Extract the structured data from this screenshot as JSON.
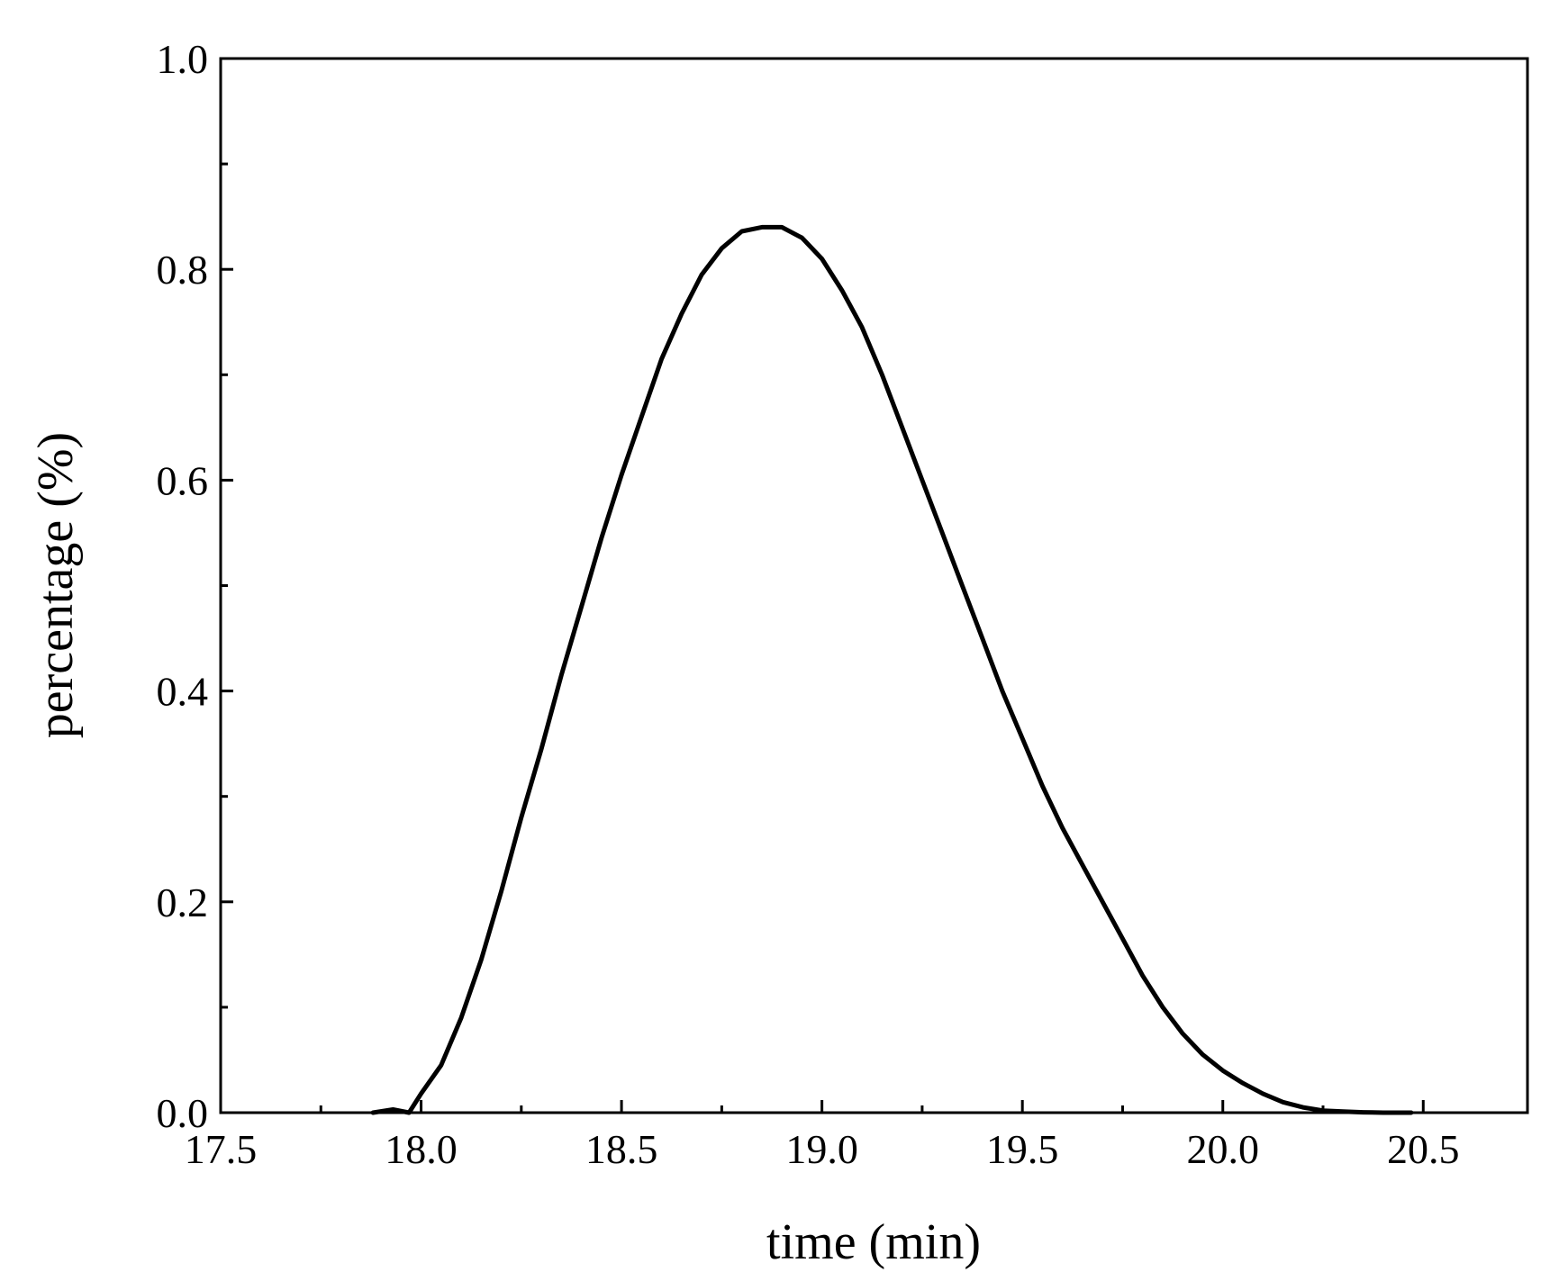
{
  "chart_data": {
    "type": "line",
    "title": "",
    "xlabel": "time (min)",
    "ylabel": "percentage (%)",
    "xlim": [
      17.5,
      20.76
    ],
    "ylim": [
      0.0,
      1.0
    ],
    "x_ticks": [
      17.5,
      18.0,
      18.5,
      19.0,
      19.5,
      20.0,
      20.5
    ],
    "x_tick_labels": [
      "17.5",
      "18.0",
      "18.5",
      "19.0",
      "19.5",
      "20.0",
      "20.5"
    ],
    "y_ticks": [
      0.0,
      0.2,
      0.4,
      0.6,
      0.8,
      1.0
    ],
    "y_tick_labels": [
      "0.0",
      "0.2",
      "0.4",
      "0.6",
      "0.8",
      "1.0"
    ],
    "grid": false,
    "line_color": "#000000",
    "series": [
      {
        "x": [
          17.88,
          17.93,
          17.97,
          18.0,
          18.05,
          18.1,
          18.15,
          18.2,
          18.25,
          18.3,
          18.35,
          18.4,
          18.45,
          18.5,
          18.55,
          18.6,
          18.65,
          18.7,
          18.75,
          18.8,
          18.85,
          18.9,
          18.95,
          19.0,
          19.05,
          19.1,
          19.15,
          19.2,
          19.25,
          19.3,
          19.35,
          19.4,
          19.45,
          19.5,
          19.55,
          19.6,
          19.65,
          19.7,
          19.75,
          19.8,
          19.85,
          19.9,
          19.95,
          20.0,
          20.05,
          20.1,
          20.15,
          20.2,
          20.25,
          20.3,
          20.35,
          20.4,
          20.47
        ],
        "y": [
          0.0,
          0.003,
          0.0,
          0.018,
          0.045,
          0.09,
          0.145,
          0.21,
          0.28,
          0.345,
          0.415,
          0.48,
          0.545,
          0.605,
          0.66,
          0.715,
          0.758,
          0.795,
          0.82,
          0.836,
          0.84,
          0.84,
          0.83,
          0.81,
          0.78,
          0.745,
          0.7,
          0.65,
          0.6,
          0.55,
          0.5,
          0.45,
          0.4,
          0.355,
          0.31,
          0.27,
          0.235,
          0.2,
          0.165,
          0.13,
          0.1,
          0.075,
          0.055,
          0.04,
          0.028,
          0.018,
          0.01,
          0.005,
          0.002,
          0.001,
          0.0003,
          0.0,
          0.0
        ]
      }
    ]
  }
}
